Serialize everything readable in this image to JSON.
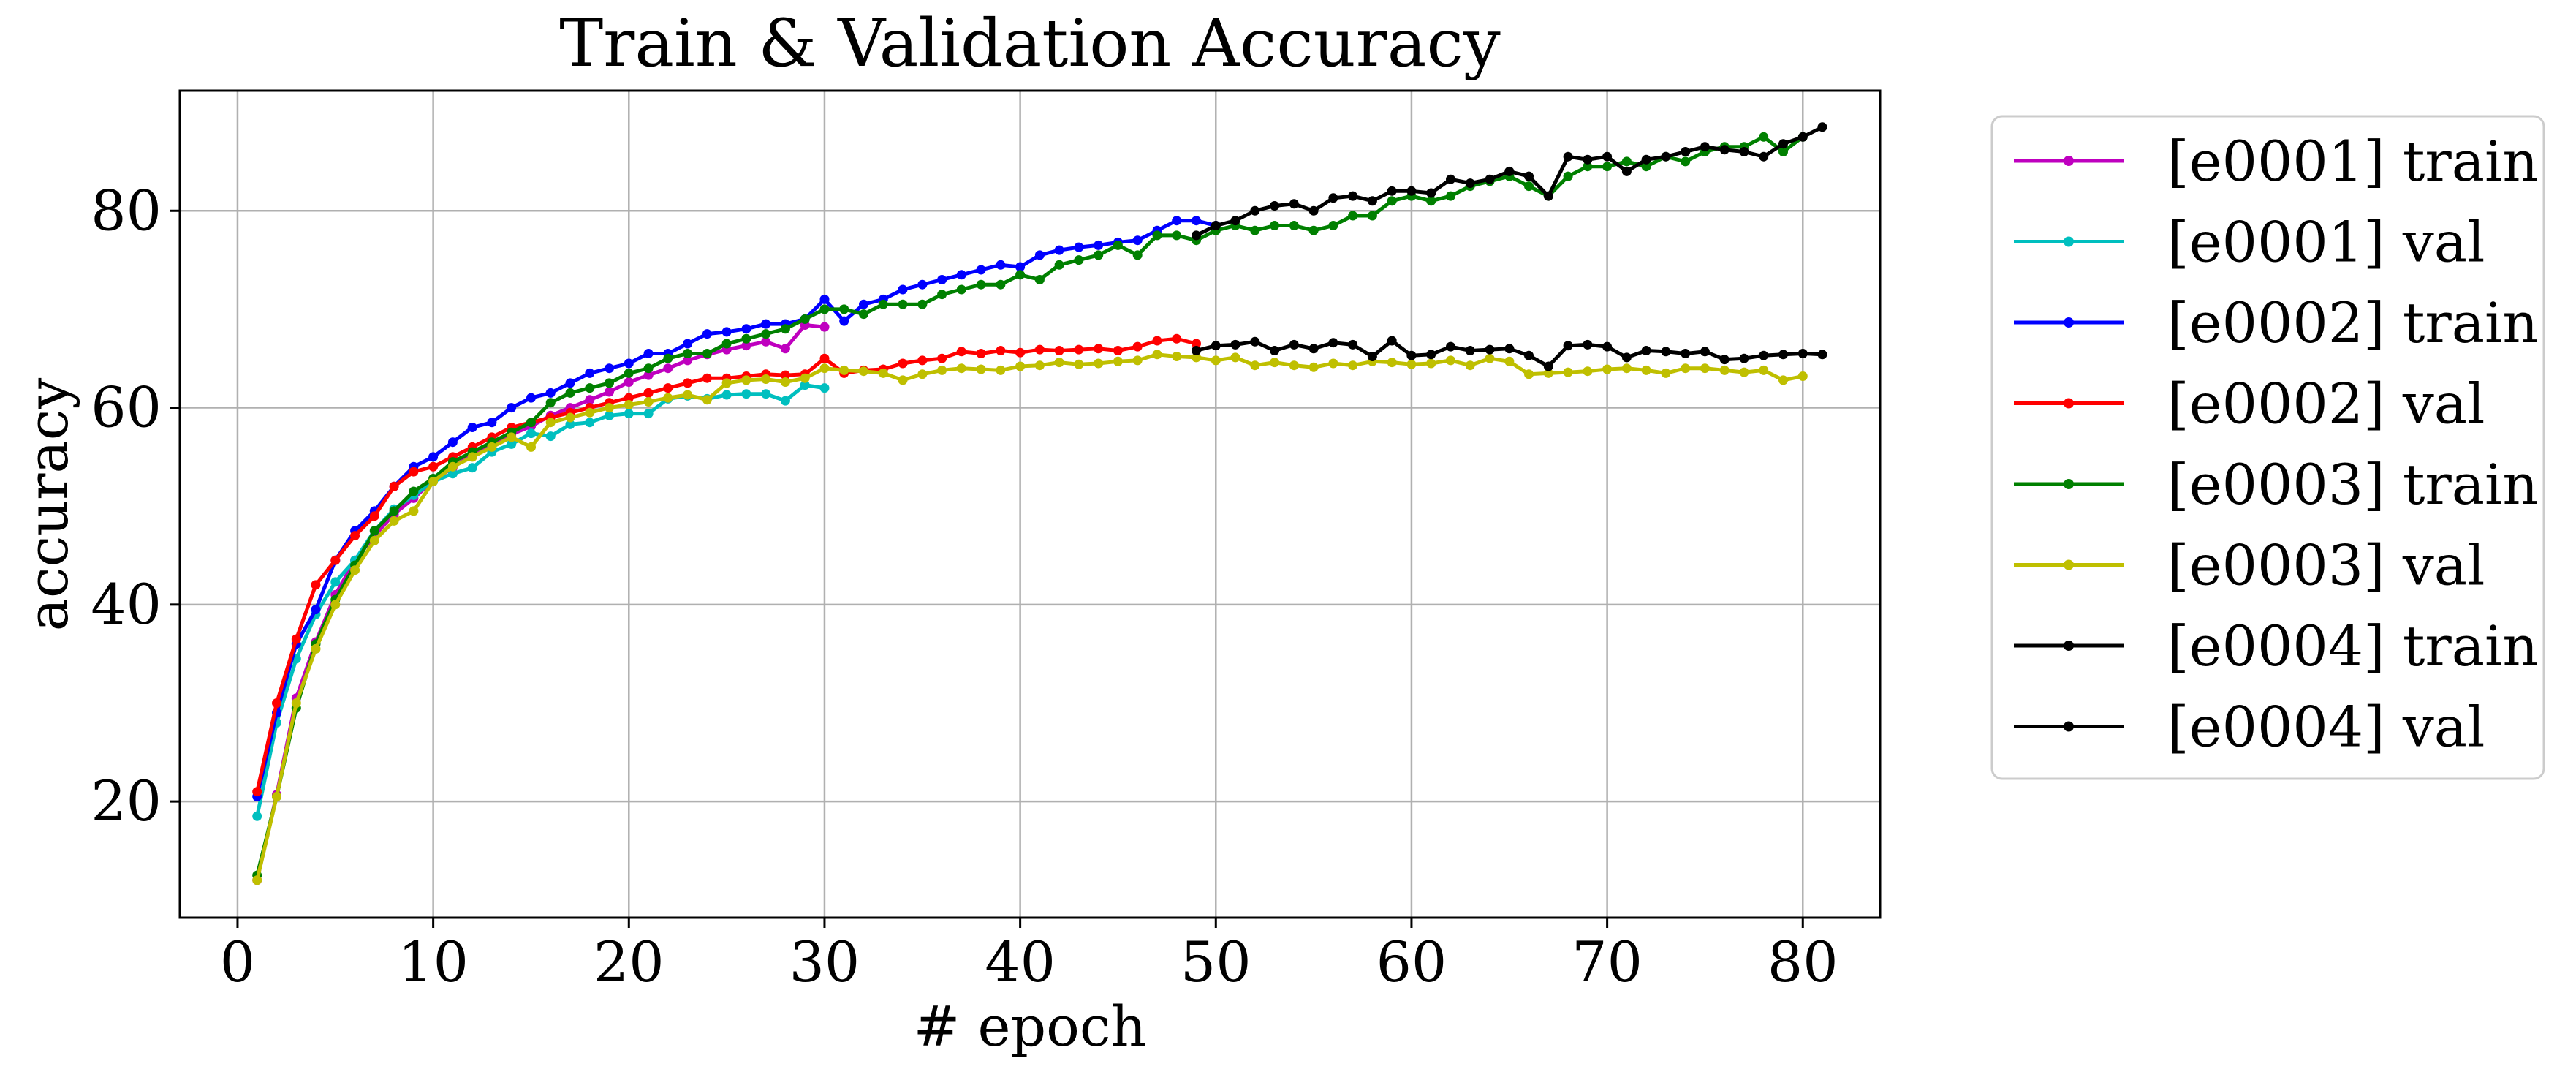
{
  "chart_data": {
    "type": "line",
    "title": "Train & Validation Accuracy",
    "xlabel": "# epoch",
    "ylabel": "accuracy",
    "xlim": [
      -2.95,
      83.95
    ],
    "ylim": [
      8.2,
      92.2
    ],
    "xticks": [
      0,
      10,
      20,
      30,
      40,
      50,
      60,
      70,
      80
    ],
    "yticks": [
      20,
      40,
      60,
      80
    ],
    "grid": true,
    "legend_position": "outside-right",
    "series": [
      {
        "name": "[e0001] train",
        "color": "#bf00bf",
        "start_epoch": 1,
        "values": [
          12.0,
          20.7,
          30.5,
          36.2,
          41.0,
          44.5,
          47.0,
          49.2,
          50.8,
          52.6,
          53.9,
          55.3,
          56.3,
          57.3,
          58.1,
          59.2,
          60.0,
          60.8,
          61.6,
          62.6,
          63.3,
          64.0,
          64.8,
          65.4,
          65.9,
          66.3,
          66.7,
          66.0,
          68.4,
          68.2
        ]
      },
      {
        "name": "[e0001] val",
        "color": "#00bfbf",
        "start_epoch": 1,
        "values": [
          18.5,
          28.0,
          34.5,
          39.0,
          42.3,
          44.5,
          47.5,
          49.7,
          51.1,
          52.5,
          53.3,
          53.9,
          55.5,
          56.3,
          57.4,
          57.1,
          58.3,
          58.5,
          59.2,
          59.4,
          59.4,
          60.9,
          61.2,
          60.9,
          61.3,
          61.4,
          61.4,
          60.7,
          62.3,
          62.0
        ]
      },
      {
        "name": "[e0002] train",
        "color": "#0000ff",
        "start_epoch": 1,
        "values": [
          20.5,
          29.0,
          36.0,
          39.5,
          44.5,
          47.5,
          49.5,
          52.0,
          54.0,
          55.0,
          56.5,
          58.0,
          58.5,
          60.0,
          61.0,
          61.5,
          62.5,
          63.5,
          64.0,
          64.5,
          65.5,
          65.5,
          66.5,
          67.5,
          67.7,
          68.0,
          68.5,
          68.5,
          69.0,
          71.0,
          68.8,
          70.5,
          71.0,
          72.0,
          72.5,
          73.0,
          73.5,
          74.0,
          74.5,
          74.3,
          75.5,
          76.0,
          76.3,
          76.5,
          76.8,
          77.0,
          78.0,
          79.0,
          79.0,
          78.5
        ]
      },
      {
        "name": "[e0002] val",
        "color": "#ff0000",
        "start_epoch": 1,
        "values": [
          21.0,
          30.0,
          36.5,
          42.0,
          44.5,
          47.0,
          49.0,
          52.0,
          53.5,
          54.0,
          55.0,
          56.0,
          57.0,
          58.0,
          58.5,
          59.0,
          59.5,
          60.0,
          60.5,
          61.0,
          61.5,
          62.0,
          62.5,
          63.0,
          63.0,
          63.2,
          63.4,
          63.3,
          63.4,
          65.0,
          63.5,
          63.8,
          63.9,
          64.5,
          64.8,
          65.0,
          65.7,
          65.5,
          65.8,
          65.6,
          65.9,
          65.8,
          65.9,
          66.0,
          65.8,
          66.2,
          66.8,
          67.0,
          66.5
        ]
      },
      {
        "name": "[e0003] train",
        "color": "#008000",
        "start_epoch": 1,
        "values": [
          12.5,
          20.5,
          29.5,
          36.0,
          40.5,
          44.0,
          47.5,
          49.5,
          51.5,
          52.8,
          54.5,
          55.5,
          56.5,
          57.5,
          58.5,
          60.5,
          61.5,
          62.0,
          62.5,
          63.5,
          64.0,
          65.0,
          65.5,
          65.5,
          66.5,
          67.0,
          67.5,
          68.0,
          69.0,
          70.0,
          70.0,
          69.5,
          70.5,
          70.5,
          70.5,
          71.5,
          72.0,
          72.5,
          72.5,
          73.5,
          73.0,
          74.5,
          75.0,
          75.5,
          76.5,
          75.5,
          77.5,
          77.5,
          77.0,
          78.0,
          78.5,
          78.0,
          78.5,
          78.5,
          78.0,
          78.5,
          79.5,
          79.5,
          81.0,
          81.5,
          81.0,
          81.5,
          82.5,
          83.0,
          83.5,
          82.5,
          81.5,
          83.5,
          84.5,
          84.5,
          85.0,
          84.5,
          85.5,
          85.0,
          86.0,
          86.5,
          86.5,
          87.5,
          86.0,
          87.5
        ]
      },
      {
        "name": "[e0003] val",
        "color": "#bfbf00",
        "start_epoch": 1,
        "values": [
          12.0,
          20.5,
          30.0,
          35.5,
          40.0,
          43.5,
          46.5,
          48.5,
          49.5,
          52.5,
          54.0,
          55.0,
          56.0,
          57.0,
          56.0,
          58.5,
          59.0,
          59.5,
          60.0,
          60.3,
          60.6,
          61.0,
          61.3,
          60.8,
          62.5,
          62.8,
          62.9,
          62.6,
          63.0,
          64.0,
          63.8,
          63.7,
          63.5,
          62.8,
          63.4,
          63.8,
          64.0,
          63.9,
          63.8,
          64.2,
          64.3,
          64.6,
          64.4,
          64.5,
          64.7,
          64.8,
          65.4,
          65.2,
          65.1,
          64.8,
          65.1,
          64.3,
          64.6,
          64.3,
          64.1,
          64.5,
          64.3,
          64.7,
          64.6,
          64.4,
          64.5,
          64.8,
          64.3,
          65.0,
          64.7,
          63.4,
          63.5,
          63.6,
          63.7,
          63.9,
          64.0,
          63.8,
          63.5,
          64.0,
          64.0,
          63.8,
          63.6,
          63.8,
          62.8,
          63.2
        ]
      },
      {
        "name": "[e0004] train",
        "color": "#000000",
        "start_epoch": 49,
        "values": [
          77.5,
          78.5,
          79.0,
          80.0,
          80.5,
          80.7,
          80.0,
          81.3,
          81.5,
          81.0,
          82.0,
          82.0,
          81.8,
          83.2,
          82.8,
          83.2,
          84.0,
          83.5,
          81.5,
          85.5,
          85.2,
          85.5,
          84.0,
          85.2,
          85.5,
          86.0,
          86.5,
          86.2,
          86.0,
          85.5,
          86.8,
          87.5,
          88.5
        ]
      },
      {
        "name": "[e0004] val",
        "color": "#000000",
        "start_epoch": 49,
        "values": [
          65.8,
          66.3,
          66.4,
          66.7,
          65.8,
          66.4,
          66.0,
          66.6,
          66.4,
          65.2,
          66.8,
          65.3,
          65.4,
          66.2,
          65.8,
          65.9,
          66.0,
          65.3,
          64.2,
          66.3,
          66.4,
          66.2,
          65.1,
          65.8,
          65.7,
          65.5,
          65.7,
          64.9,
          65.0,
          65.3,
          65.4,
          65.5,
          65.4
        ]
      }
    ]
  }
}
